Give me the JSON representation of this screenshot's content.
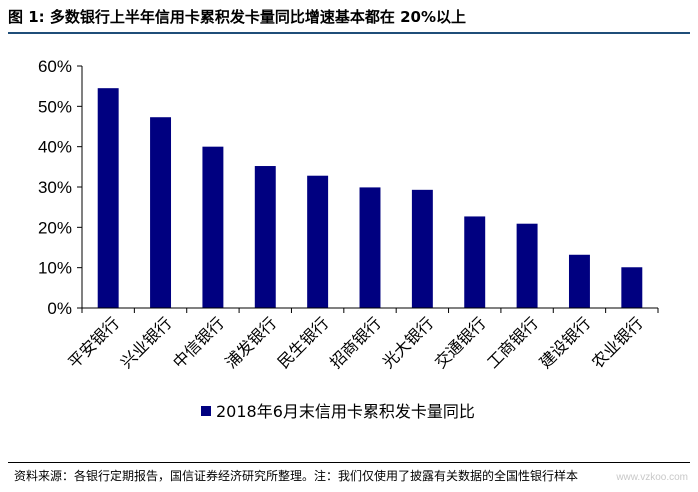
{
  "figure": {
    "title": "图 1:  多数银行上半年信用卡累积发卡量同比增速基本都在 20%以上",
    "source_note": "资料来源：各银行定期报告，国信证券经济研究所整理。注：我们仅使用了披露有关数据的全国性银行样本",
    "watermark": "www.vzkoo.com"
  },
  "chart_data": {
    "type": "bar",
    "categories": [
      "平安银行",
      "兴业银行",
      "中信银行",
      "浦发银行",
      "民生银行",
      "招商银行",
      "光大银行",
      "交通银行",
      "工商银行",
      "建设银行",
      "农业银行"
    ],
    "series": [
      {
        "name": "2018年6月末信用卡累积发卡量同比",
        "values": [
          54.5,
          47.3,
          40.0,
          35.2,
          32.8,
          29.9,
          29.3,
          22.7,
          20.9,
          13.2,
          10.1
        ]
      }
    ],
    "y_ticks": [
      "0%",
      "10%",
      "20%",
      "30%",
      "40%",
      "50%",
      "60%"
    ],
    "ylim": [
      0,
      60
    ],
    "unit": "%",
    "legend_position": "bottom",
    "grid": false,
    "bar_color": "#000080"
  }
}
